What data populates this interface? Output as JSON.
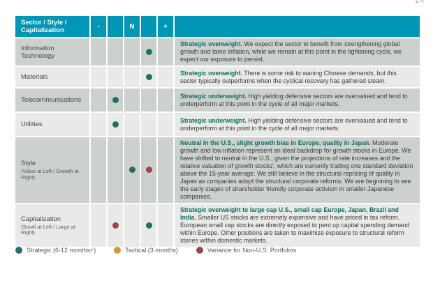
{
  "page_number": "14",
  "colors": {
    "header_bg": "#0096b6",
    "row_dark": "#ccd1cd",
    "row_light": "#e9eae7",
    "lead_text": "#0c6e65",
    "strategic": "#1d6f68",
    "tactical": "#d0982f",
    "variance": "#9e4347"
  },
  "table": {
    "header": {
      "label": "Sector / Style / Capitalization",
      "cols": [
        "-",
        "",
        "N",
        "",
        "+"
      ]
    },
    "rows": [
      {
        "label": "Information Technology",
        "sublabel": "",
        "dots": [
          null,
          null,
          null,
          "strategic",
          null
        ],
        "lead": "Strategic overweight.",
        "body": " We expect the sector to benefit from strengthening global growth and tame inflation, while we remain at this point in the tightening cycle, we expect our exposure to persist."
      },
      {
        "label": "Materials",
        "sublabel": "",
        "dots": [
          null,
          null,
          null,
          "strategic",
          null
        ],
        "lead": "Strategic overweight.",
        "body": " There is some risk to waning Chinese demands, but this sector typically outperforms when the cyclical recovery has gathered steam."
      },
      {
        "label": "Telecommunications",
        "sublabel": "",
        "dots": [
          null,
          "strategic",
          null,
          null,
          null
        ],
        "lead": "Strategic underweight.",
        "body": " High yielding defensive sectors are overvalued and tend to underperform at this point in the cycle of all major markets."
      },
      {
        "label": "Utilities",
        "sublabel": "",
        "dots": [
          null,
          "strategic",
          null,
          null,
          null
        ],
        "lead": "Strategic underweight.",
        "body": " High yielding defensive sectors are overvalued and tend to underperform at this point in the cycle of all major markets."
      },
      {
        "label": "Style",
        "sublabel": "(Value at Left / Growth at Right)",
        "dots": [
          null,
          null,
          "strategic",
          "variance",
          null
        ],
        "lead": "Neutral in the U.S., slight growth bias in Europe, quality in Japan.",
        "body": " Moderate growth and low inflation represent an ideal backdrop for growth stocks in Europe. We have shifted to neutral in the U.S., given the projections of rate increases and the relative valuation of growth stocks', which are currently trading one standard deviation above the 15-year average. We still believe in the structural repricing of quality in Japan as companies adopt the structural corporate reforms. We are beginning to see the early stages of shareholder friendly corporate activism in smaller Japanese companies."
      },
      {
        "label": "Capitalization",
        "sublabel": "(Small at Left / Large at Right)",
        "dots": [
          null,
          "variance",
          null,
          "strategic",
          null
        ],
        "lead": "Strategic overweight to large cap U.S., small cap Europe, Japan, Brazil and India.",
        "body": " Smaller US stocks are extremely expensive and have priced in tax reform. European small cap stocks are directly exposed to pent up capital spending demand within Europe. Other positions are taken to maximize exposure to structural reform stories within domestic markets."
      }
    ]
  },
  "legend": [
    {
      "label": "Strategic (6-12 months+)",
      "color_key": "strategic"
    },
    {
      "label": "Tactical (3 months)",
      "color_key": "tactical"
    },
    {
      "label": "Variance for Non-U.S. Portfolios",
      "color_key": "variance"
    }
  ]
}
